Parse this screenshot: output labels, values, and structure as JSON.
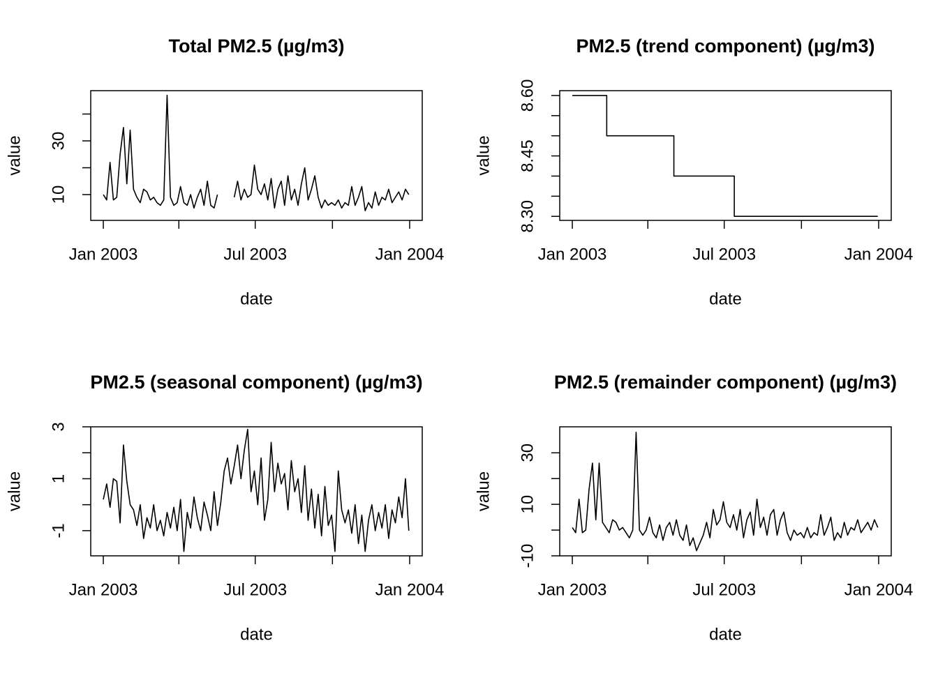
{
  "chart_data": [
    {
      "type": "line",
      "title": "Total PM2.5 (µg/m3)",
      "xlabel": "date",
      "ylabel": "value",
      "color": "#000000",
      "xlim": [
        -15,
        380
      ],
      "xticks": [
        {
          "value": 0,
          "label": "Jan 2003"
        },
        {
          "value": 90
        },
        {
          "value": 181,
          "label": "Jul 2003"
        },
        {
          "value": 273
        },
        {
          "value": 365,
          "label": "Jan 2004"
        }
      ],
      "ylim": [
        0.4,
        48.7
      ],
      "yticks": [
        10,
        {
          "value": 20
        },
        30,
        {
          "value": 40
        }
      ],
      "x": [
        0,
        4,
        8,
        12,
        16,
        20,
        24,
        28,
        32,
        36,
        40,
        44,
        48,
        52,
        56,
        60,
        64,
        68,
        72,
        76,
        80,
        84,
        88,
        92,
        96,
        100,
        104,
        108,
        112,
        116,
        120,
        124,
        128,
        132,
        136,
        140,
        144,
        148,
        152,
        156,
        160,
        164,
        168,
        172,
        176,
        180,
        184,
        188,
        192,
        196,
        200,
        204,
        208,
        212,
        216,
        220,
        224,
        228,
        232,
        236,
        240,
        244,
        248,
        252,
        256,
        260,
        264,
        268,
        272,
        276,
        280,
        284,
        288,
        292,
        296,
        300,
        304,
        308,
        312,
        316,
        320,
        324,
        328,
        332,
        336,
        340,
        344,
        348,
        352,
        356,
        360,
        364
      ],
      "values": [
        10,
        8,
        22,
        8,
        9,
        25,
        35,
        14,
        34,
        12,
        9,
        7,
        12,
        11,
        8,
        9,
        7,
        6,
        8,
        47,
        9,
        6,
        7,
        13,
        7,
        6,
        10,
        5,
        9,
        12,
        6,
        15,
        6,
        5,
        10,
        null,
        null,
        null,
        null,
        9,
        15,
        8,
        12,
        9,
        10,
        21,
        12,
        10,
        14,
        8,
        16,
        5,
        12,
        15,
        6,
        17,
        8,
        12,
        6,
        14,
        20,
        8,
        12,
        17,
        9,
        5,
        8,
        6,
        7,
        6,
        8,
        5,
        7,
        6,
        13,
        6,
        9,
        13,
        4,
        7,
        5,
        11,
        6,
        9,
        8,
        12,
        7,
        9,
        11,
        8,
        12,
        10
      ]
    },
    {
      "type": "line",
      "title": "PM2.5 (trend component) (µg/m3)",
      "xlabel": "date",
      "ylabel": "value",
      "color": "#000000",
      "xlim": [
        -15,
        380
      ],
      "xticks": [
        {
          "value": 0,
          "label": "Jan 2003"
        },
        {
          "value": 90
        },
        {
          "value": 181,
          "label": "Jul 2003"
        },
        {
          "value": 273
        },
        {
          "value": 365,
          "label": "Jan 2004"
        }
      ],
      "ylim": [
        8.29,
        8.612
      ],
      "yticks": [
        {
          "value": 8.3,
          "label": "8.30"
        },
        {
          "value": 8.35
        },
        {
          "value": 8.4
        },
        {
          "value": 8.45,
          "label": "8.45"
        },
        {
          "value": 8.5
        },
        {
          "value": 8.55
        },
        {
          "value": 8.6,
          "label": "8.60"
        }
      ],
      "x": [
        0,
        41,
        41,
        121,
        121,
        193,
        193,
        364
      ],
      "values": [
        8.6,
        8.6,
        8.5,
        8.5,
        8.4,
        8.4,
        8.3,
        8.3
      ]
    },
    {
      "type": "line",
      "title": "PM2.5 (seasonal component) (µg/m3)",
      "xlabel": "date",
      "ylabel": "value",
      "color": "#000000",
      "xlim": [
        -15,
        380
      ],
      "xticks": [
        {
          "value": 0,
          "label": "Jan 2003"
        },
        {
          "value": 90
        },
        {
          "value": 181,
          "label": "Jul 2003"
        },
        {
          "value": 273
        },
        {
          "value": 365,
          "label": "Jan 2004"
        }
      ],
      "ylim": [
        -1.97,
        3.0
      ],
      "yticks": [
        -1,
        {
          "value": 0
        },
        1,
        {
          "value": 2
        },
        3
      ],
      "x": [
        0,
        4,
        8,
        12,
        16,
        20,
        24,
        28,
        32,
        36,
        40,
        44,
        48,
        52,
        56,
        60,
        64,
        68,
        72,
        76,
        80,
        84,
        88,
        92,
        96,
        100,
        104,
        108,
        112,
        116,
        120,
        124,
        128,
        132,
        136,
        140,
        144,
        148,
        152,
        156,
        160,
        164,
        168,
        172,
        176,
        180,
        184,
        188,
        192,
        196,
        200,
        204,
        208,
        212,
        216,
        220,
        224,
        228,
        232,
        236,
        240,
        244,
        248,
        252,
        256,
        260,
        264,
        268,
        272,
        276,
        280,
        284,
        288,
        292,
        296,
        300,
        304,
        308,
        312,
        316,
        320,
        324,
        328,
        332,
        336,
        340,
        344,
        348,
        352,
        356,
        360,
        364
      ],
      "values": [
        0.2,
        0.8,
        -0.1,
        1.0,
        0.9,
        -0.7,
        2.3,
        0.9,
        0.0,
        -0.2,
        -0.8,
        0.0,
        -1.3,
        -0.5,
        -0.9,
        0.0,
        -1.0,
        -0.6,
        -1.2,
        -0.3,
        -0.9,
        -0.1,
        -1.0,
        0.2,
        -1.8,
        -0.3,
        -0.9,
        0.3,
        -0.5,
        -1.0,
        0.1,
        -0.4,
        -1.0,
        0.5,
        -0.8,
        0.1,
        1.3,
        1.8,
        0.8,
        1.5,
        2.3,
        1.0,
        2.1,
        2.9,
        0.5,
        1.3,
        0.0,
        1.8,
        -0.6,
        0.2,
        2.4,
        0.5,
        1.6,
        0.8,
        1.2,
        -0.2,
        1.7,
        0.5,
        1.0,
        -0.3,
        1.5,
        -0.6,
        0.6,
        -0.9,
        0.4,
        -1.2,
        0.7,
        -0.8,
        -0.4,
        -1.8,
        1.3,
        -0.2,
        -0.7,
        -0.2,
        -1.1,
        0.0,
        -1.5,
        -0.4,
        -1.8,
        -0.6,
        0.0,
        -1.0,
        -0.3,
        -0.9,
        0.0,
        -1.3,
        -0.2,
        -0.7,
        0.3,
        -0.5,
        1.0,
        -1.0
      ]
    },
    {
      "type": "line",
      "title": "PM2.5 (remainder component) (µg/m3)",
      "xlabel": "date",
      "ylabel": "value",
      "color": "#000000",
      "xlim": [
        -15,
        380
      ],
      "xticks": [
        {
          "value": 0,
          "label": "Jan 2003"
        },
        {
          "value": 90
        },
        {
          "value": 181,
          "label": "Jul 2003"
        },
        {
          "value": 273
        },
        {
          "value": 365,
          "label": "Jan 2004"
        }
      ],
      "ylim": [
        -10,
        40.1
      ],
      "yticks": [
        -10,
        {
          "value": 0
        },
        10,
        {
          "value": 20
        },
        30
      ],
      "x": [
        0,
        4,
        8,
        12,
        16,
        20,
        24,
        28,
        32,
        36,
        40,
        44,
        48,
        52,
        56,
        60,
        64,
        68,
        72,
        76,
        80,
        84,
        88,
        92,
        96,
        100,
        104,
        108,
        112,
        116,
        120,
        124,
        128,
        132,
        136,
        140,
        144,
        148,
        152,
        156,
        160,
        164,
        168,
        172,
        176,
        180,
        184,
        188,
        192,
        196,
        200,
        204,
        208,
        212,
        216,
        220,
        224,
        228,
        232,
        236,
        240,
        244,
        248,
        252,
        256,
        260,
        264,
        268,
        272,
        276,
        280,
        284,
        288,
        292,
        296,
        300,
        304,
        308,
        312,
        316,
        320,
        324,
        328,
        332,
        336,
        340,
        344,
        348,
        352,
        356,
        360,
        364
      ],
      "values": [
        1,
        -1,
        12,
        -1,
        0,
        16,
        26,
        4,
        26,
        3,
        1,
        -1,
        4,
        3,
        0,
        1,
        -1,
        -3,
        0,
        38,
        0,
        -2,
        0,
        5,
        -1,
        -3,
        2,
        -4,
        1,
        3,
        -2,
        4,
        -2,
        -4,
        2,
        -6,
        -3,
        -8,
        -5,
        -2,
        3,
        -3,
        8,
        2,
        4,
        11,
        3,
        1,
        6,
        0,
        8,
        -3,
        4,
        7,
        -2,
        12,
        1,
        5,
        -2,
        6,
        8,
        -2,
        4,
        7,
        -1,
        -4,
        0,
        -2,
        -1,
        -3,
        1,
        -3,
        -1,
        -2,
        6,
        -2,
        1,
        5,
        -4,
        -1,
        -3,
        3,
        -2,
        1,
        0,
        4,
        -1,
        1,
        3,
        0,
        4,
        1
      ]
    }
  ]
}
